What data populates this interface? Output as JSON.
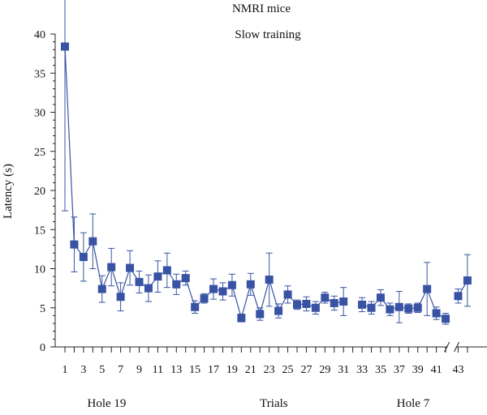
{
  "chart_data": {
    "type": "line",
    "title": "NMRI mice",
    "subtitle": "Slow training",
    "ylabel": "Latency (s)",
    "ylim": [
      0,
      40
    ],
    "yticks": [
      0,
      5,
      10,
      15,
      20,
      25,
      30,
      35,
      40
    ],
    "grid": false,
    "marker": "square",
    "color": "#3953a4",
    "xticks_labeled": [
      1,
      3,
      5,
      7,
      9,
      11,
      13,
      15,
      17,
      19,
      21,
      23,
      25,
      27,
      29,
      31,
      33,
      35,
      37,
      39,
      41,
      43
    ],
    "axis_break_between": [
      41,
      43
    ],
    "group_labels": [
      {
        "text": "Hole 19",
        "trial": 5.5
      },
      {
        "text": "Trials",
        "trial": 23.5
      },
      {
        "text": "Hole 7",
        "trial": 38.5
      }
    ],
    "series": [
      {
        "segments": [
          {
            "x": [
              1,
              2,
              3,
              4,
              5,
              6,
              7,
              8,
              9,
              10,
              11,
              12,
              13,
              14,
              15,
              16,
              17,
              18,
              19,
              20,
              21,
              22,
              23,
              24,
              25,
              26,
              27,
              28,
              29,
              30,
              31
            ],
            "y": [
              38.4,
              13.1,
              11.5,
              13.5,
              7.4,
              10.2,
              6.4,
              10.1,
              8.3,
              7.5,
              9.0,
              9.8,
              8.0,
              8.8,
              5.1,
              6.2,
              7.4,
              7.1,
              7.9,
              3.7,
              8.0,
              4.2,
              8.6,
              4.6,
              6.7,
              5.4,
              5.5,
              5.0,
              6.3,
              5.6,
              5.8
            ],
            "err": [
              21.0,
              3.5,
              3.1,
              3.5,
              1.7,
              2.4,
              1.8,
              2.2,
              1.4,
              1.7,
              2.0,
              2.2,
              1.3,
              0.9,
              0.8,
              0.6,
              1.3,
              1.1,
              1.4,
              0.5,
              1.4,
              0.8,
              3.4,
              0.9,
              1.1,
              0.6,
              0.9,
              0.8,
              0.7,
              0.9,
              1.8
            ]
          },
          {
            "x": [
              33,
              34,
              35,
              36,
              37,
              38,
              39,
              40,
              41,
              42
            ],
            "y": [
              5.4,
              5.0,
              6.3,
              4.8,
              5.1,
              4.9,
              5.0,
              7.4,
              4.3,
              3.6
            ],
            "err": [
              0.9,
              0.8,
              1.0,
              0.8,
              2.0,
              0.6,
              0.6,
              3.4,
              0.8,
              0.7
            ]
          },
          {
            "x": [
              43,
              44
            ],
            "y": [
              6.5,
              8.5
            ],
            "err": [
              0.9,
              3.3
            ]
          }
        ]
      }
    ]
  }
}
